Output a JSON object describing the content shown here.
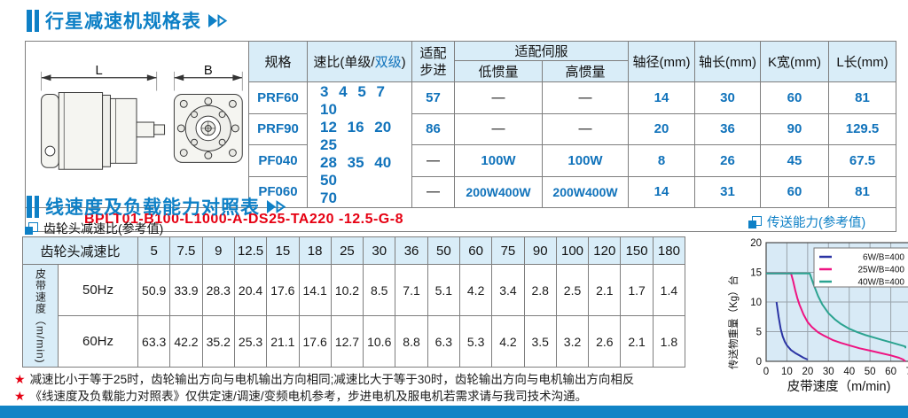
{
  "accent": "#0e80c6",
  "section1": {
    "title": "行星减速机规格表",
    "diagram": {
      "dim_side": "L",
      "dim_front": "B"
    },
    "table": {
      "col_spec": "规格",
      "col_ratio_prefix": "速比(单级/",
      "col_ratio_blue": "双级",
      "col_ratio_suffix": ")",
      "col_stepper_l1": "适配",
      "col_stepper_l2": "步进",
      "col_servo": "适配伺服",
      "col_servo_low": "低惯量",
      "col_servo_high": "高惯量",
      "col_shaft_dia": "轴径(mm)",
      "col_shaft_len": "轴长(mm)",
      "col_k_width": "K宽(mm)",
      "col_l_len": "L长(mm)",
      "ratio_lines": [
        "3 4 5 7 10",
        "12 16 20 25",
        "28 35 40 50",
        "70"
      ],
      "rows": [
        {
          "spec": "PRF60",
          "stepper": "57",
          "servo_low": "—",
          "servo_high": "—",
          "dia": "14",
          "len": "30",
          "k": "60",
          "l": "81"
        },
        {
          "spec": "PRF90",
          "stepper": "86",
          "servo_low": "—",
          "servo_high": "—",
          "dia": "20",
          "len": "36",
          "k": "90",
          "l": "129.5"
        },
        {
          "spec": "PF040",
          "stepper": "—",
          "servo_low": "100W",
          "servo_high": "100W",
          "dia": "8",
          "len": "26",
          "k": "45",
          "l": "67.5"
        },
        {
          "spec": "PF060",
          "stepper": "—",
          "servo_low": "200W400W",
          "servo_high": "200W400W",
          "dia": "14",
          "len": "31",
          "k": "60",
          "l": "81"
        }
      ],
      "model_code": "BPLT01-B100-L1000-A-DS25-TA220 -12.5-G-8"
    }
  },
  "section2": {
    "title": "线速度及负载能力对照表",
    "sub_label": "齿轮头减速比(参考值)",
    "table": {
      "corner": "齿轮头减速比",
      "ratios": [
        "5",
        "7.5",
        "9",
        "12.5",
        "15",
        "18",
        "25",
        "30",
        "36",
        "50",
        "60",
        "75",
        "90",
        "100",
        "120",
        "150",
        "180"
      ],
      "row_group": "皮带速度（m/min)",
      "rows": [
        {
          "freq": "50Hz",
          "values": [
            "50.9",
            "33.9",
            "28.3",
            "20.4",
            "17.6",
            "14.1",
            "10.2",
            "8.5",
            "7.1",
            "5.1",
            "4.2",
            "3.4",
            "2.8",
            "2.5",
            "2.1",
            "1.7",
            "1.4"
          ]
        },
        {
          "freq": "60Hz",
          "values": [
            "63.3",
            "42.2",
            "35.2",
            "25.3",
            "21.1",
            "17.6",
            "12.7",
            "10.6",
            "8.8",
            "6.3",
            "5.3",
            "4.2",
            "3.5",
            "3.2",
            "2.6",
            "2.1",
            "1.8"
          ]
        }
      ]
    },
    "notes": [
      "减速比小于等于25时，齿轮输出方向与电机输出方向相同;减速比大于等于30时，齿轮输出方向与电机输出方向相反",
      "《线速度及负载能力对照表》仅供定速/调速/变频电机参考，步进电机及服电机若需求请与我司技术沟通。"
    ]
  },
  "chart_data": {
    "type": "line",
    "title": "传送能力(参考值)",
    "xlabel": "皮带速度（m/min)",
    "ylabel": "传送物重量（Kg）台",
    "xlim": [
      0,
      70
    ],
    "ylim": [
      0,
      20
    ],
    "x_ticks": [
      0,
      10,
      20,
      30,
      40,
      50,
      60,
      70
    ],
    "y_ticks": [
      0,
      5,
      10,
      15,
      20
    ],
    "grid": true,
    "legend_position": "top-right",
    "plot_bg": "#d8eaf6",
    "series": [
      {
        "name": "6W/B=400",
        "color": "#2b34a4",
        "points": [
          [
            5,
            10
          ],
          [
            6,
            7.5
          ],
          [
            7,
            5.5
          ],
          [
            8,
            4.2
          ],
          [
            9,
            3.3
          ],
          [
            10,
            2.7
          ],
          [
            12,
            1.9
          ],
          [
            14,
            1.4
          ],
          [
            16,
            1.0
          ],
          [
            18,
            0.6
          ],
          [
            20,
            0.3
          ]
        ]
      },
      {
        "name": "25W/B=400",
        "color": "#ee1482",
        "points": [
          [
            0,
            14.8
          ],
          [
            12,
            14.8
          ],
          [
            13,
            13.5
          ],
          [
            14,
            12
          ],
          [
            15,
            10.7
          ],
          [
            16,
            9.6
          ],
          [
            18,
            7.9
          ],
          [
            20,
            6.6
          ],
          [
            22,
            5.8
          ],
          [
            25,
            4.9
          ],
          [
            28,
            4.3
          ],
          [
            32,
            3.6
          ],
          [
            36,
            3.1
          ],
          [
            40,
            2.7
          ],
          [
            45,
            2.2
          ],
          [
            50,
            1.8
          ],
          [
            55,
            1.4
          ],
          [
            60,
            1.0
          ],
          [
            64,
            0.6
          ],
          [
            66,
            0.3
          ],
          [
            67,
            0
          ]
        ]
      },
      {
        "name": "40W/B=400",
        "color": "#2ba390",
        "points": [
          [
            0,
            14.8
          ],
          [
            21,
            14.8
          ],
          [
            22,
            13.8
          ],
          [
            23,
            12.8
          ],
          [
            25,
            11
          ],
          [
            27,
            9.6
          ],
          [
            30,
            8.1
          ],
          [
            33,
            7.1
          ],
          [
            36,
            6.3
          ],
          [
            40,
            5.5
          ],
          [
            44,
            4.9
          ],
          [
            48,
            4.4
          ],
          [
            52,
            4.0
          ],
          [
            56,
            3.6
          ],
          [
            60,
            3.2
          ],
          [
            63,
            2.9
          ],
          [
            66,
            2.6
          ],
          [
            67,
            2.5
          ],
          [
            67,
            2.2
          ]
        ]
      }
    ]
  }
}
